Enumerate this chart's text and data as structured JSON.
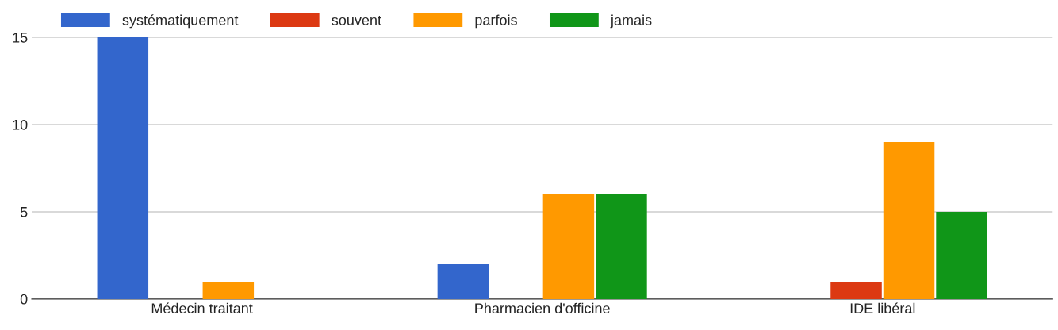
{
  "chart_data": {
    "type": "bar",
    "categories": [
      "Médecin traitant",
      "Pharmacien d'officine",
      "IDE libéral"
    ],
    "series": [
      {
        "name": "systématiquement",
        "color": "#3366cc",
        "values": [
          15,
          2,
          0
        ]
      },
      {
        "name": "souvent",
        "color": "#dc3912",
        "values": [
          0,
          0,
          1
        ]
      },
      {
        "name": "parfois",
        "color": "#ff9900",
        "values": [
          1,
          6,
          9
        ]
      },
      {
        "name": "jamais",
        "color": "#109618",
        "values": [
          0,
          6,
          5
        ]
      }
    ],
    "ylim": [
      0,
      15
    ],
    "yticks": [
      0,
      5,
      10,
      15
    ],
    "grid": "y",
    "legend": "top left"
  }
}
